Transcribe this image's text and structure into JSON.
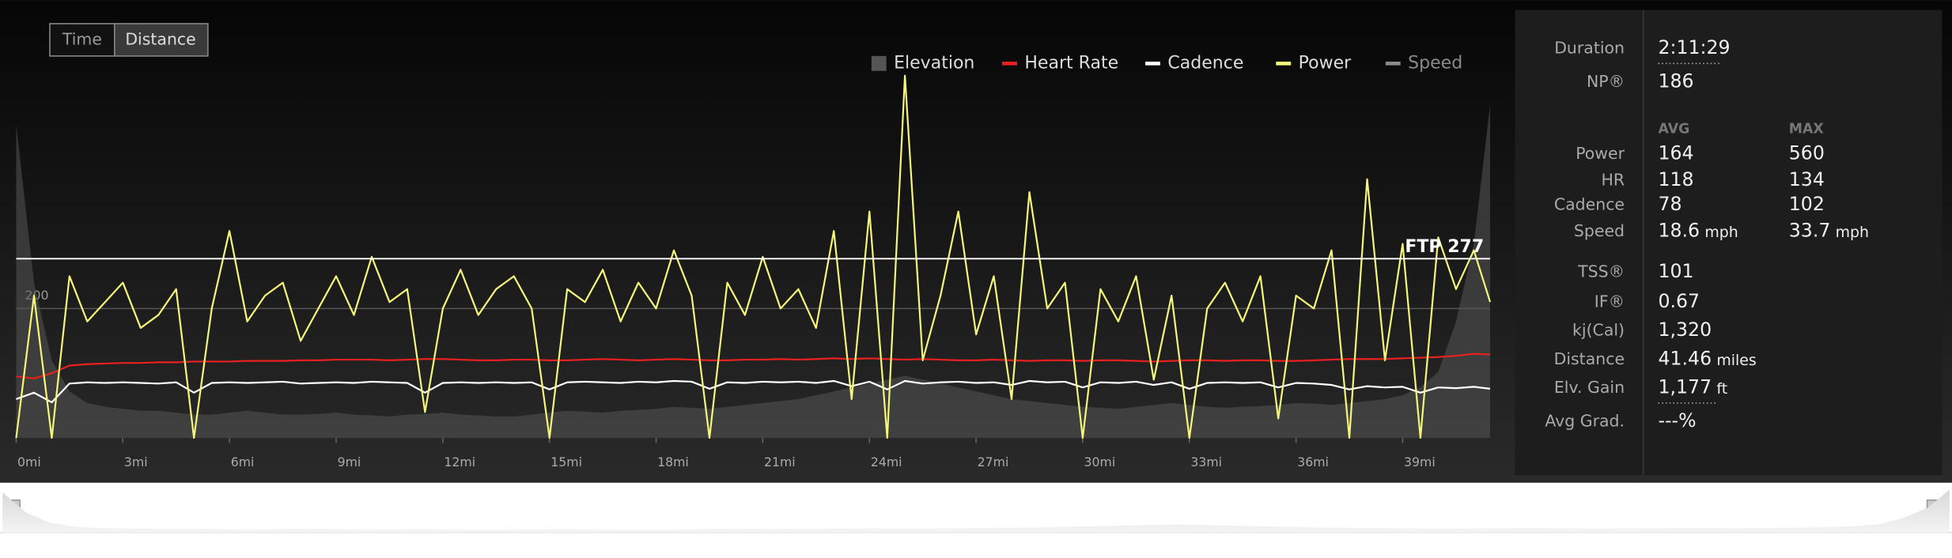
{
  "toggle": {
    "options": [
      "Time",
      "Distance"
    ],
    "active": 1
  },
  "chart_data": {
    "type": "line",
    "x": [
      0,
      0.5,
      1,
      1.5,
      2,
      2.5,
      3,
      3.5,
      4,
      4.5,
      5,
      5.5,
      6,
      6.5,
      7,
      7.5,
      8,
      8.5,
      9,
      9.5,
      10,
      10.5,
      11,
      11.5,
      12,
      12.5,
      13,
      13.5,
      14,
      14.5,
      15,
      15.5,
      16,
      16.5,
      17,
      17.5,
      18,
      18.5,
      19,
      19.5,
      20,
      20.5,
      21,
      21.5,
      22,
      22.5,
      23,
      23.5,
      24,
      24.5,
      25,
      25.5,
      26,
      26.5,
      27,
      27.5,
      28,
      28.5,
      29,
      29.5,
      30,
      30.5,
      31,
      31.5,
      32,
      32.5,
      33,
      33.5,
      34,
      34.5,
      35,
      35.5,
      36,
      36.5,
      37,
      37.5,
      38,
      38.5,
      39,
      39.5,
      40,
      40.5,
      41,
      41.46
    ],
    "xlim": [
      0,
      41.46
    ],
    "xticks": [
      {
        "value": 0,
        "label": "0mi"
      },
      {
        "value": 3,
        "label": "3mi"
      },
      {
        "value": 6,
        "label": "6mi"
      },
      {
        "value": 9,
        "label": "9mi"
      },
      {
        "value": 12,
        "label": "12mi"
      },
      {
        "value": 15,
        "label": "15mi"
      },
      {
        "value": 18,
        "label": "18mi"
      },
      {
        "value": 21,
        "label": "21mi"
      },
      {
        "value": 24,
        "label": "24mi"
      },
      {
        "value": 27,
        "label": "27mi"
      },
      {
        "value": 30,
        "label": "30mi"
      },
      {
        "value": 33,
        "label": "33mi"
      },
      {
        "value": 36,
        "label": "36mi"
      },
      {
        "value": 39,
        "label": "39mi"
      }
    ],
    "ylim": [
      0,
      600
    ],
    "yticks": [
      200
    ],
    "y2lim": [
      0,
      1000
    ],
    "grid": true,
    "annotation": {
      "label": "FTP 277",
      "value": 277
    },
    "series": [
      {
        "name": "Elevation",
        "color": "#555555",
        "axis": "y2",
        "kind": "area",
        "values": [
          808,
          400,
          200,
          120,
          90,
          80,
          75,
          70,
          70,
          65,
          60,
          60,
          65,
          70,
          65,
          60,
          60,
          62,
          65,
          60,
          58,
          55,
          60,
          62,
          65,
          60,
          58,
          55,
          55,
          60,
          65,
          70,
          68,
          65,
          70,
          72,
          75,
          80,
          78,
          75,
          80,
          85,
          90,
          95,
          100,
          110,
          120,
          130,
          140,
          150,
          160,
          150,
          140,
          130,
          120,
          110,
          100,
          95,
          90,
          85,
          80,
          78,
          75,
          80,
          85,
          90,
          85,
          80,
          78,
          80,
          82,
          85,
          90,
          88,
          85,
          90,
          95,
          100,
          110,
          130,
          170,
          300,
          500,
          860
        ]
      },
      {
        "name": "Heart Rate",
        "color": "#e8201e",
        "kind": "line",
        "values": [
          95,
          92,
          100,
          112,
          114,
          115,
          116,
          116,
          117,
          117,
          118,
          118,
          118,
          119,
          119,
          119,
          120,
          120,
          121,
          121,
          121,
          120,
          121,
          122,
          122,
          121,
          120,
          120,
          121,
          121,
          120,
          120,
          121,
          122,
          121,
          120,
          121,
          122,
          121,
          120,
          120,
          121,
          121,
          122,
          121,
          122,
          123,
          122,
          123,
          122,
          121,
          122,
          121,
          120,
          120,
          121,
          120,
          119,
          120,
          120,
          119,
          120,
          120,
          119,
          118,
          119,
          120,
          120,
          119,
          120,
          120,
          119,
          119,
          120,
          121,
          122,
          122,
          122,
          123,
          124,
          125,
          127,
          130,
          129
        ]
      },
      {
        "name": "Cadence",
        "color": "#ffffff",
        "kind": "line",
        "values": [
          60,
          70,
          55,
          84,
          86,
          85,
          86,
          85,
          84,
          86,
          70,
          85,
          86,
          85,
          86,
          87,
          84,
          85,
          86,
          85,
          87,
          86,
          85,
          70,
          85,
          86,
          85,
          86,
          85,
          86,
          75,
          86,
          87,
          86,
          85,
          87,
          86,
          88,
          87,
          76,
          86,
          85,
          87,
          86,
          87,
          85,
          88,
          80,
          87,
          75,
          88,
          84,
          86,
          87,
          85,
          86,
          82,
          88,
          86,
          87,
          78,
          86,
          85,
          87,
          82,
          86,
          76,
          85,
          86,
          85,
          86,
          78,
          85,
          84,
          82,
          75,
          80,
          78,
          79,
          70,
          78,
          77,
          79,
          76
        ]
      },
      {
        "name": "Power",
        "color": "#f6f67a",
        "kind": "line",
        "values": [
          0,
          220,
          0,
          250,
          180,
          210,
          240,
          170,
          190,
          230,
          0,
          200,
          320,
          180,
          220,
          240,
          150,
          200,
          250,
          190,
          280,
          210,
          230,
          40,
          200,
          260,
          190,
          230,
          250,
          200,
          0,
          230,
          210,
          260,
          180,
          240,
          200,
          290,
          220,
          0,
          240,
          190,
          280,
          200,
          230,
          170,
          320,
          60,
          350,
          0,
          560,
          120,
          220,
          350,
          160,
          250,
          60,
          380,
          200,
          240,
          0,
          230,
          180,
          250,
          90,
          220,
          0,
          200,
          240,
          180,
          250,
          30,
          220,
          200,
          290,
          0,
          400,
          120,
          300,
          0,
          310,
          230,
          290,
          210
        ]
      },
      {
        "name": "Speed",
        "color": "#8a8a8a",
        "visible": false
      }
    ]
  },
  "stats": {
    "duration": {
      "label": "Duration",
      "value": "2:11:29"
    },
    "np": {
      "label": "NP®",
      "value": "186"
    },
    "header": [
      "AVG",
      "MAX"
    ],
    "rows": [
      {
        "label": "Power",
        "avg": "164",
        "max": "560"
      },
      {
        "label": "HR",
        "avg": "118",
        "max": "134"
      },
      {
        "label": "Cadence",
        "avg": "78",
        "max": "102"
      },
      {
        "label": "Speed",
        "avg": "18.6",
        "avg_unit": "mph",
        "max": "33.7",
        "max_unit": "mph"
      }
    ],
    "extra": [
      {
        "label": "TSS®",
        "value": "101"
      },
      {
        "label": "IF®",
        "value": "0.67"
      },
      {
        "label": "kj(Cal)",
        "value": "1,320"
      },
      {
        "label": "Distance",
        "value": "41.46",
        "unit": "miles"
      },
      {
        "label": "Elv. Gain",
        "value": "1,177",
        "unit": "ft"
      },
      {
        "label": "Avg Grad.",
        "value": "---%"
      }
    ]
  }
}
